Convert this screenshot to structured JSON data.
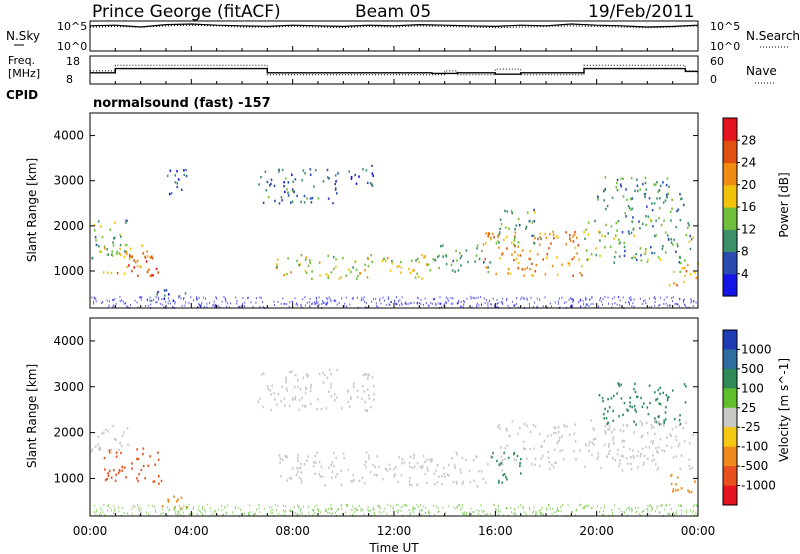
{
  "header": {
    "title": "Prince George (fitACF)",
    "beam": "Beam 05",
    "date": "19/Feb/2011"
  },
  "noise_panel": {
    "left_label": "N.Sky",
    "right_label": "N.Search",
    "tick_top": "10^5",
    "tick_bottom": "10^0",
    "sky_values": [
      4.2,
      4.3,
      4.0,
      4.4,
      4.5,
      4.3,
      4.2,
      4.1,
      4.3,
      4.2,
      4.1,
      4.3,
      4.2,
      4.4,
      4.3,
      4.2,
      4.1,
      4.3,
      4.2,
      4.5,
      4.3,
      4.2,
      4.0,
      4.1,
      4.3
    ],
    "search_values": [
      4.0,
      4.1,
      4.0,
      4.2,
      4.3,
      4.2,
      4.0,
      4.0,
      4.1,
      4.0,
      3.9,
      4.1,
      4.0,
      4.2,
      4.1,
      4.0,
      3.9,
      4.0,
      4.1,
      4.2,
      4.1,
      4.0,
      3.9,
      4.0,
      4.2
    ]
  },
  "freq_panel": {
    "left_label_1": "Freq.",
    "left_label_2": "[MHz]",
    "right_label": "Nave",
    "tick_18": "18",
    "tick_8": "8",
    "tick_60": "60",
    "tick_0": "0",
    "cpid_label": "CPID",
    "cpid_text": "normalsound (fast) -157",
    "freq_steps": [
      [
        0,
        1,
        12.0
      ],
      [
        1,
        5,
        13.5
      ],
      [
        5,
        7,
        13.5
      ],
      [
        7,
        13.5,
        12.0
      ],
      [
        13.5,
        14.5,
        11.8
      ],
      [
        14.5,
        16,
        12.0
      ],
      [
        16,
        17,
        11.5
      ],
      [
        17,
        19.5,
        12.0
      ],
      [
        19.5,
        23.5,
        13.5
      ],
      [
        23.5,
        24,
        12.5
      ]
    ],
    "nave_steps": [
      [
        0,
        1,
        28
      ],
      [
        1,
        5,
        40
      ],
      [
        5,
        7,
        40
      ],
      [
        7,
        14,
        20
      ],
      [
        14,
        14.5,
        28
      ],
      [
        14.5,
        16,
        20
      ],
      [
        16,
        17,
        32
      ],
      [
        17,
        19.5,
        20
      ],
      [
        19.5,
        23.5,
        40
      ],
      [
        23.5,
        24,
        28
      ]
    ],
    "freq_range": [
      8,
      18
    ],
    "nave_range": [
      0,
      60
    ]
  },
  "power_panel": {
    "ylabel": "Slant Range [km]",
    "yticks": [
      "1000",
      "2000",
      "3000",
      "4000"
    ],
    "colorbar_label": "Power [dB]",
    "colorbar_ticks": [
      "4",
      "8",
      "12",
      "16",
      "20",
      "24",
      "28"
    ],
    "colorbar_colors": [
      "#1414e6",
      "#2a4cb0",
      "#3c8f6a",
      "#6fbf3a",
      "#f0c30a",
      "#f08c14",
      "#e05010",
      "#e6141e"
    ]
  },
  "velocity_panel": {
    "ylabel": "Slant Range [km]",
    "yticks": [
      "1000",
      "2000",
      "3000",
      "4000"
    ],
    "colorbar_label": "Velocity [m s^-1]",
    "colorbar_ticks": [
      "1000",
      "500",
      "100",
      "25",
      "-25",
      "-100",
      "-500",
      "-1000"
    ],
    "colorbar_colors": [
      "#1e3cb4",
      "#2f6ca0",
      "#2f8a5a",
      "#5fc02c",
      "#c8c8c4",
      "#f5c814",
      "#f08a1c",
      "#e8501e",
      "#e6141e"
    ]
  },
  "xaxis": {
    "label": "Time UT",
    "ticks": [
      "00:00",
      "04:00",
      "08:00",
      "12:00",
      "16:00",
      "20:00",
      "00:00"
    ]
  },
  "chart_data": {
    "type": "heatmap",
    "title": "Prince George (fitACF)",
    "xlabel": "Time UT",
    "ylabel": "Slant Range [km]",
    "xlim": [
      0,
      24
    ],
    "ylim": [
      180,
      4500
    ],
    "power_regions": [
      {
        "t0": 0.0,
        "t1": 1.5,
        "r0": 1300,
        "r1": 2200,
        "value": 12
      },
      {
        "t0": 0.5,
        "t1": 2.5,
        "r0": 900,
        "r1": 1600,
        "value": 20
      },
      {
        "t0": 1.5,
        "t1": 2.8,
        "r0": 900,
        "r1": 1400,
        "value": 28
      },
      {
        "t0": 2.3,
        "t1": 3.8,
        "r0": 350,
        "r1": 650,
        "value": 8
      },
      {
        "t0": 3.0,
        "t1": 4.0,
        "r0": 2700,
        "r1": 3300,
        "value": 6
      },
      {
        "t0": 6.6,
        "t1": 9.8,
        "r0": 2500,
        "r1": 3300,
        "value": 8
      },
      {
        "t0": 10.2,
        "t1": 11.2,
        "r0": 2800,
        "r1": 3400,
        "value": 6
      },
      {
        "t0": 7.3,
        "t1": 13.5,
        "r0": 850,
        "r1": 1400,
        "value": 16
      },
      {
        "t0": 13.5,
        "t1": 15.8,
        "r0": 1000,
        "r1": 1600,
        "value": 12
      },
      {
        "t0": 15.5,
        "t1": 19.5,
        "r0": 900,
        "r1": 1900,
        "value": 22
      },
      {
        "t0": 16.0,
        "t1": 17.8,
        "r0": 1600,
        "r1": 2400,
        "value": 12
      },
      {
        "t0": 19.5,
        "t1": 23.8,
        "r0": 1200,
        "r1": 2200,
        "value": 12
      },
      {
        "t0": 20.0,
        "t1": 23.5,
        "r0": 2200,
        "r1": 3100,
        "value": 10
      },
      {
        "t0": 22.8,
        "t1": 24.0,
        "r0": 700,
        "r1": 1200,
        "value": 20
      }
    ],
    "velocity_regions": [
      {
        "t0": 0.0,
        "t1": 1.5,
        "r0": 1600,
        "r1": 2200,
        "value": 0
      },
      {
        "t0": 0.5,
        "t1": 2.8,
        "r0": 900,
        "r1": 1700,
        "value": -400
      },
      {
        "t0": 2.3,
        "t1": 3.8,
        "r0": 350,
        "r1": 650,
        "value": -120
      },
      {
        "t0": 6.6,
        "t1": 11.2,
        "r0": 2500,
        "r1": 3400,
        "value": 0
      },
      {
        "t0": 7.3,
        "t1": 15.8,
        "r0": 850,
        "r1": 1600,
        "value": 0
      },
      {
        "t0": 15.7,
        "t1": 17.0,
        "r0": 900,
        "r1": 1600,
        "value": 110
      },
      {
        "t0": 16.0,
        "t1": 23.8,
        "r0": 1200,
        "r1": 2300,
        "value": 0
      },
      {
        "t0": 20.0,
        "t1": 23.5,
        "r0": 2200,
        "r1": 3100,
        "value": 150
      },
      {
        "t0": 22.8,
        "t1": 24.0,
        "r0": 700,
        "r1": 1200,
        "value": -150
      }
    ]
  }
}
